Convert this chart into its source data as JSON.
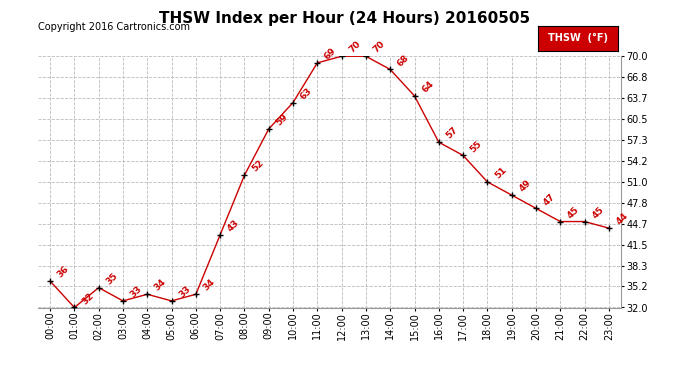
{
  "title": "THSW Index per Hour (24 Hours) 20160505",
  "copyright": "Copyright 2016 Cartronics.com",
  "legend_label": "THSW  (°F)",
  "hours": [
    "00:00",
    "01:00",
    "02:00",
    "03:00",
    "04:00",
    "05:00",
    "06:00",
    "07:00",
    "08:00",
    "09:00",
    "10:00",
    "11:00",
    "12:00",
    "13:00",
    "14:00",
    "15:00",
    "16:00",
    "17:00",
    "18:00",
    "19:00",
    "20:00",
    "21:00",
    "22:00",
    "23:00"
  ],
  "values": [
    36,
    32,
    35,
    33,
    34,
    33,
    34,
    43,
    52,
    59,
    63,
    69,
    70,
    70,
    68,
    64,
    57,
    55,
    51,
    49,
    47,
    45,
    45,
    44
  ],
  "ylim": [
    32.0,
    70.0
  ],
  "yticks": [
    32.0,
    35.2,
    38.3,
    41.5,
    44.7,
    47.8,
    51.0,
    54.2,
    57.3,
    60.5,
    63.7,
    66.8,
    70.0
  ],
  "line_color": "#cc0000",
  "marker_color": "#000000",
  "label_color": "#cc0000",
  "bg_color": "#ffffff",
  "grid_color": "#bbbbbb",
  "title_fontsize": 11,
  "copyright_fontsize": 7,
  "label_fontsize": 6.5,
  "tick_fontsize": 7,
  "legend_bg": "#cc0000",
  "legend_text_color": "#ffffff"
}
